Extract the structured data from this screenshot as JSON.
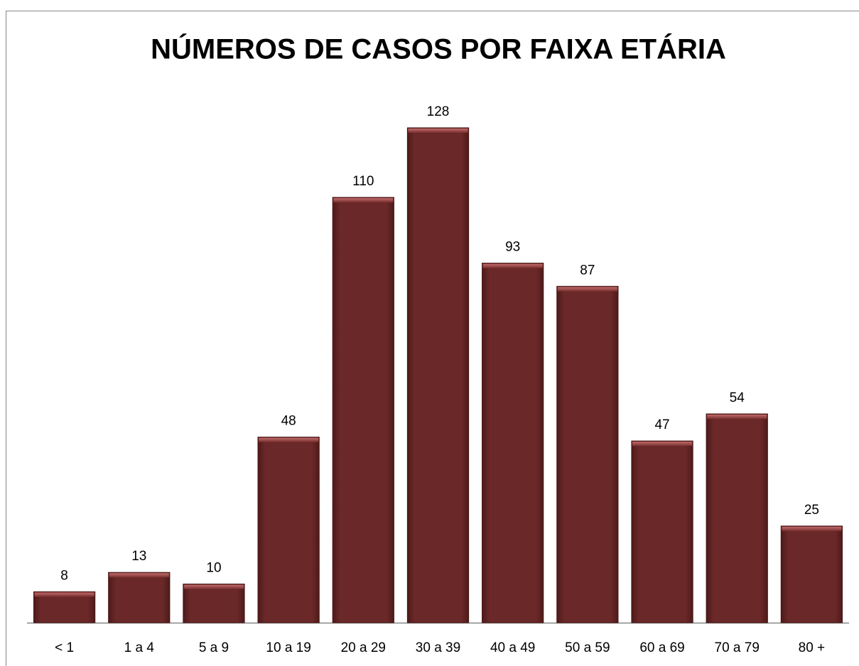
{
  "chart_data": {
    "type": "bar",
    "title": "NÚMEROS DE CASOS POR FAIXA ETÁRIA",
    "categories": [
      "< 1",
      "1 a 4",
      "5 a 9",
      "10 a 19",
      "20 a 29",
      "30 a 39",
      "40 a 49",
      "50 a 59",
      "60 a 69",
      "70 a 79",
      "80 +"
    ],
    "values": [
      8,
      13,
      10,
      48,
      110,
      128,
      93,
      87,
      47,
      54,
      25
    ],
    "color": "#6b2828"
  }
}
